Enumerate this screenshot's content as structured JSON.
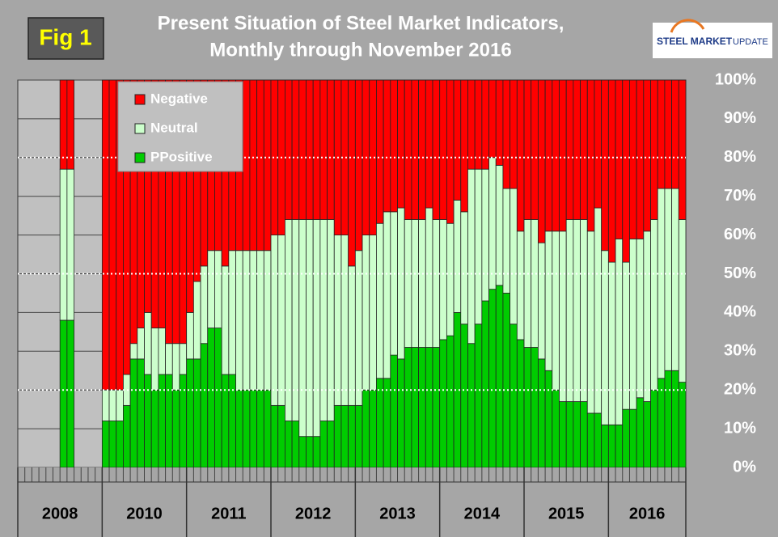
{
  "chart_data": {
    "type": "stacked_bar",
    "title": "Present Situation of Steel Market Indicators,",
    "subtitle": "Monthly through November 2016",
    "figure_label": "Fig 1",
    "logo": {
      "primary": "STEEL MARKET",
      "secondary": "UPDATE"
    },
    "x_groups": [
      "2008",
      "2010",
      "2011",
      "2012",
      "2013",
      "2014",
      "2015",
      "2016"
    ],
    "categories": [
      null,
      null,
      null,
      null,
      null,
      null,
      null,
      null,
      null,
      null,
      null,
      null,
      null,
      null,
      null,
      null,
      null,
      null,
      null,
      null,
      null,
      null,
      null,
      null,
      null,
      null,
      null,
      null,
      null,
      null,
      null,
      null,
      null,
      null,
      null,
      null,
      null,
      null,
      null,
      null,
      null,
      null,
      null,
      null,
      null,
      null,
      null,
      null,
      null,
      null,
      null,
      null,
      null,
      null,
      null,
      null,
      null,
      null,
      null,
      null,
      null,
      null,
      null,
      null,
      null,
      null,
      null,
      null,
      null,
      null,
      null,
      null,
      null,
      null,
      null,
      null,
      null,
      null,
      null,
      null,
      null,
      null,
      null,
      null,
      null,
      null,
      null,
      null,
      null,
      null,
      null,
      null,
      null,
      null,
      null
    ],
    "series": [
      {
        "name": "Negative",
        "color": "#ff0000",
        "values": [
          null,
          null,
          null,
          null,
          null,
          null,
          23,
          23,
          null,
          null,
          null,
          null,
          80,
          80,
          80,
          76,
          68,
          64,
          60,
          64,
          64,
          68,
          68,
          68,
          60,
          52,
          48,
          44,
          44,
          48,
          44,
          44,
          44,
          44,
          44,
          44,
          40,
          40,
          36,
          36,
          36,
          36,
          36,
          36,
          36,
          40,
          40,
          48,
          44,
          40,
          40,
          37,
          34,
          34,
          33,
          36,
          36,
          36,
          33,
          36,
          36,
          37,
          31,
          34,
          23,
          23,
          23,
          20,
          22,
          28,
          28,
          39,
          36,
          36,
          42,
          39,
          39,
          39,
          36,
          36,
          36,
          39,
          33,
          44,
          47,
          41,
          47,
          41,
          41,
          39,
          36,
          28,
          28,
          28,
          36
        ]
      },
      {
        "name": "Neutral",
        "color": "#ccffcc",
        "values": [
          null,
          null,
          null,
          null,
          null,
          null,
          39,
          39,
          null,
          null,
          null,
          null,
          8,
          8,
          8,
          8,
          4,
          8,
          16,
          16,
          12,
          8,
          12,
          8,
          12,
          20,
          20,
          20,
          20,
          28,
          32,
          36,
          36,
          36,
          36,
          36,
          44,
          44,
          52,
          52,
          56,
          56,
          56,
          52,
          52,
          44,
          44,
          36,
          40,
          40,
          40,
          40,
          43,
          37,
          39,
          33,
          33,
          33,
          36,
          33,
          31,
          29,
          29,
          29,
          45,
          40,
          34,
          34,
          31,
          27,
          35,
          28,
          33,
          33,
          30,
          36,
          41,
          44,
          47,
          47,
          47,
          47,
          53,
          45,
          42,
          48,
          38,
          44,
          41,
          44,
          44,
          49,
          47,
          47,
          42
        ]
      },
      {
        "name": "PPositive",
        "color": "#00cc00",
        "values": [
          null,
          null,
          null,
          null,
          null,
          null,
          38,
          38,
          null,
          null,
          null,
          null,
          12,
          12,
          12,
          16,
          28,
          28,
          24,
          20,
          24,
          24,
          20,
          24,
          28,
          28,
          32,
          36,
          36,
          24,
          24,
          20,
          20,
          20,
          20,
          20,
          16,
          16,
          12,
          12,
          8,
          8,
          8,
          12,
          12,
          16,
          16,
          16,
          16,
          20,
          20,
          23,
          23,
          29,
          28,
          31,
          31,
          31,
          31,
          31,
          33,
          34,
          40,
          37,
          32,
          37,
          43,
          46,
          47,
          45,
          37,
          33,
          31,
          31,
          28,
          25,
          20,
          17,
          17,
          17,
          17,
          14,
          14,
          11,
          11,
          11,
          15,
          15,
          18,
          17,
          20,
          23,
          25,
          25,
          22
        ]
      }
    ],
    "ylim": [
      0,
      100
    ],
    "yticks": [
      {
        "value": 0,
        "label": "0%"
      },
      {
        "value": 10,
        "label": "10%"
      },
      {
        "value": 20,
        "label": "20%"
      },
      {
        "value": 30,
        "label": "30%"
      },
      {
        "value": 40,
        "label": "40%"
      },
      {
        "value": 50,
        "label": "50%"
      },
      {
        "value": 60,
        "label": "60%"
      },
      {
        "value": 70,
        "label": "70%"
      },
      {
        "value": 80,
        "label": "80%"
      },
      {
        "value": 90,
        "label": "90%"
      },
      {
        "value": 100,
        "label": "100%"
      }
    ],
    "reference_lines": [
      20,
      50,
      80
    ],
    "grid": true,
    "legend": "upper left"
  }
}
